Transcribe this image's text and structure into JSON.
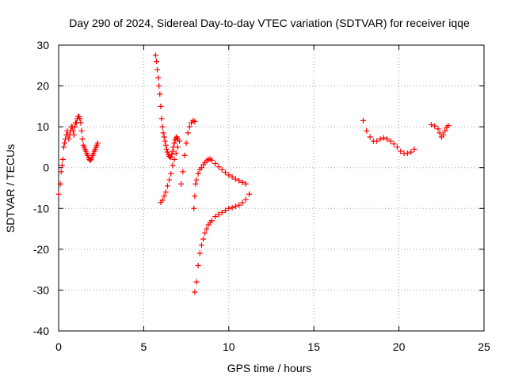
{
  "chart_data": {
    "type": "scatter",
    "title": "Day 290 of 2024, Sidereal Day-to-day VTEC variation (SDTVAR) for receiver iqqe",
    "xlabel": "GPS time / hours",
    "ylabel": "SDTVAR / TECUs",
    "xlim": [
      0,
      25
    ],
    "ylim": [
      -40,
      30
    ],
    "xticks": [
      "0",
      "5",
      "10",
      "15",
      "20",
      "25"
    ],
    "yticks": [
      "-40",
      "-30",
      "-20",
      "-10",
      "0",
      "10",
      "20",
      "30"
    ],
    "grid": true,
    "marker": "plus",
    "series": [
      {
        "name": "segment-1",
        "color": "#ff0000",
        "x": [
          0,
          0.1,
          0.15,
          0.2,
          0.25,
          0.3,
          0.35,
          0.4,
          0.45,
          0.5,
          0.55,
          0.6,
          0.65,
          0.7,
          0.75,
          0.8,
          0.85,
          0.9,
          0.95,
          1.0,
          1.05,
          1.1,
          1.15,
          1.2,
          1.25,
          1.3,
          1.35,
          1.4,
          1.45,
          1.5,
          1.55,
          1.6,
          1.65,
          1.7,
          1.75,
          1.8,
          1.85,
          1.9,
          1.95,
          2.0,
          2.05,
          2.1,
          2.15,
          2.2,
          2.25,
          2.3
        ],
        "y": [
          -6.5,
          -4,
          -1,
          0.5,
          2,
          5,
          6,
          7,
          8,
          9,
          8,
          7,
          8,
          9,
          10,
          10,
          9,
          8,
          10,
          11,
          11,
          12,
          12.5,
          12.5,
          12,
          11,
          9,
          7,
          5.5,
          5,
          4.5,
          4,
          3.5,
          3,
          2.5,
          2,
          1.8,
          2,
          2.5,
          3,
          3.5,
          4,
          4.5,
          5,
          5.5,
          6
        ]
      },
      {
        "name": "segment-2",
        "color": "#ff0000",
        "x": [
          5.7,
          5.75,
          5.8,
          5.85,
          5.9,
          5.95,
          6.0,
          6.05,
          6.1,
          6.15,
          6.2,
          6.25,
          6.3,
          6.35,
          6.4,
          6.45,
          6.5,
          6.55,
          6.6,
          6.65,
          6.7,
          6.75,
          6.8,
          6.85,
          6.9,
          6.95,
          7.0
        ],
        "y": [
          27.5,
          26,
          24,
          22,
          20,
          18,
          15,
          12,
          10,
          8.5,
          7.5,
          6.5,
          5.5,
          4.5,
          3.8,
          3.2,
          2.8,
          2.5,
          2.7,
          3.2,
          4,
          5,
          6,
          6.8,
          7.3,
          7.5,
          7
        ]
      },
      {
        "name": "segment-3",
        "color": "#ff0000",
        "x": [
          6.0,
          6.1,
          6.2,
          6.3,
          6.4,
          6.5,
          6.6,
          6.7,
          6.8,
          6.9,
          7.0,
          7.1,
          7.2,
          7.3,
          7.4,
          7.5,
          7.6,
          7.7,
          7.8,
          7.9,
          8.0
        ],
        "y": [
          -8.5,
          -8,
          -7,
          -6,
          -4.5,
          -3,
          -1.5,
          0.5,
          2,
          3.5,
          5,
          6.5,
          -4,
          -1,
          3,
          6,
          8.5,
          10,
          11,
          11.5,
          11.3
        ]
      },
      {
        "name": "segment-4",
        "color": "#ff0000",
        "x": [
          7.95,
          8.0,
          8.05,
          8.1,
          8.2,
          8.3,
          8.4,
          8.5,
          8.6,
          8.7,
          8.8,
          8.9,
          9.0,
          9.2,
          9.4,
          9.6,
          9.8,
          10.0,
          10.2,
          10.4,
          10.6,
          10.8,
          11.0
        ],
        "y": [
          -10,
          -7,
          -4,
          -3,
          -1.5,
          -0.5,
          0,
          0.7,
          1.2,
          1.7,
          2,
          2.1,
          1.8,
          1,
          0.2,
          -0.5,
          -1.2,
          -1.8,
          -2.3,
          -2.8,
          -3.2,
          -3.6,
          -4
        ]
      },
      {
        "name": "segment-5",
        "color": "#ff0000",
        "x": [
          8.0,
          8.1,
          8.2,
          8.3,
          8.4,
          8.5,
          8.6,
          8.7,
          8.8,
          8.9,
          9.0,
          9.2,
          9.4,
          9.6,
          9.8,
          10.0,
          10.2,
          10.4,
          10.6,
          10.8,
          11.0,
          11.2
        ],
        "y": [
          -30.5,
          -28,
          -24,
          -21,
          -19,
          -17.5,
          -16,
          -15,
          -14,
          -13.5,
          -13,
          -12,
          -11.5,
          -11,
          -10.5,
          -10,
          -9.8,
          -9.5,
          -9.2,
          -8.6,
          -7.8,
          -6.5
        ]
      },
      {
        "name": "segment-6",
        "color": "#ff0000",
        "x": [
          17.9,
          18.1,
          18.3,
          18.5,
          18.7,
          18.9,
          19.1,
          19.3,
          19.5,
          19.7,
          19.9,
          20.1,
          20.3,
          20.5,
          20.7,
          20.9
        ],
        "y": [
          11.5,
          9,
          7.5,
          6.5,
          6.5,
          7,
          7.3,
          7,
          6.5,
          5.8,
          5,
          4,
          3.5,
          3.5,
          3.8,
          4.5
        ]
      },
      {
        "name": "segment-7",
        "color": "#ff0000",
        "x": [
          21.9,
          22.1,
          22.3,
          22.4,
          22.5,
          22.6,
          22.7,
          22.8,
          22.9
        ],
        "y": [
          10.5,
          10.2,
          9.5,
          8.5,
          7.5,
          8,
          9,
          9.8,
          10.3
        ]
      }
    ]
  }
}
